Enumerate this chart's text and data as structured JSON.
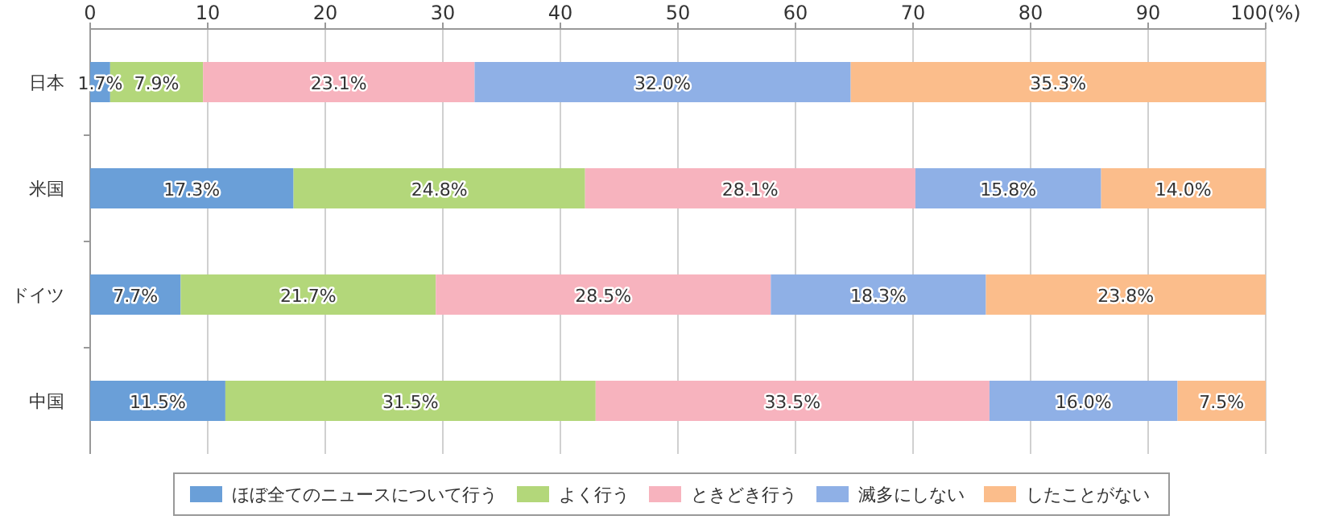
{
  "chart_data": {
    "type": "bar",
    "orientation": "horizontal",
    "stacked": true,
    "categories": [
      "日本",
      "米国",
      "ドイツ",
      "中国"
    ],
    "series": [
      {
        "name": "ほぼ全てのニュースについて行う",
        "color": "#6a9fd8",
        "values": [
          1.7,
          17.3,
          7.7,
          11.5
        ],
        "value_labels": [
          "1.7%",
          "17.3%",
          "7.7%",
          "11.5%"
        ]
      },
      {
        "name": "よく行う",
        "color": "#b3d77a",
        "values": [
          7.9,
          24.8,
          21.7,
          31.5
        ],
        "value_labels": [
          "7.9%",
          "24.8%",
          "21.7%",
          "31.5%"
        ]
      },
      {
        "name": "ときどき行う",
        "color": "#f7b3be",
        "values": [
          23.1,
          28.1,
          28.5,
          33.5
        ],
        "value_labels": [
          "23.1%",
          "28.1%",
          "28.5%",
          "33.5%"
        ]
      },
      {
        "name": "滅多にしない",
        "color": "#8fb0e6",
        "values": [
          32.0,
          15.8,
          18.3,
          16.0
        ],
        "value_labels": [
          "32.0%",
          "15.8%",
          "18.3%",
          "16.0%"
        ]
      },
      {
        "name": "したことがない",
        "color": "#fbbd8b",
        "values": [
          35.3,
          14.0,
          23.8,
          7.5
        ],
        "value_labels": [
          "35.3%",
          "14.0%",
          "23.8%",
          "7.5%"
        ]
      }
    ],
    "xlim": [
      0,
      100
    ],
    "xticks": [
      0,
      10,
      20,
      30,
      40,
      50,
      60,
      70,
      80,
      90,
      {
        "value": 100,
        "label": "100(%)"
      }
    ],
    "grid": "x",
    "legend": "bottom"
  }
}
